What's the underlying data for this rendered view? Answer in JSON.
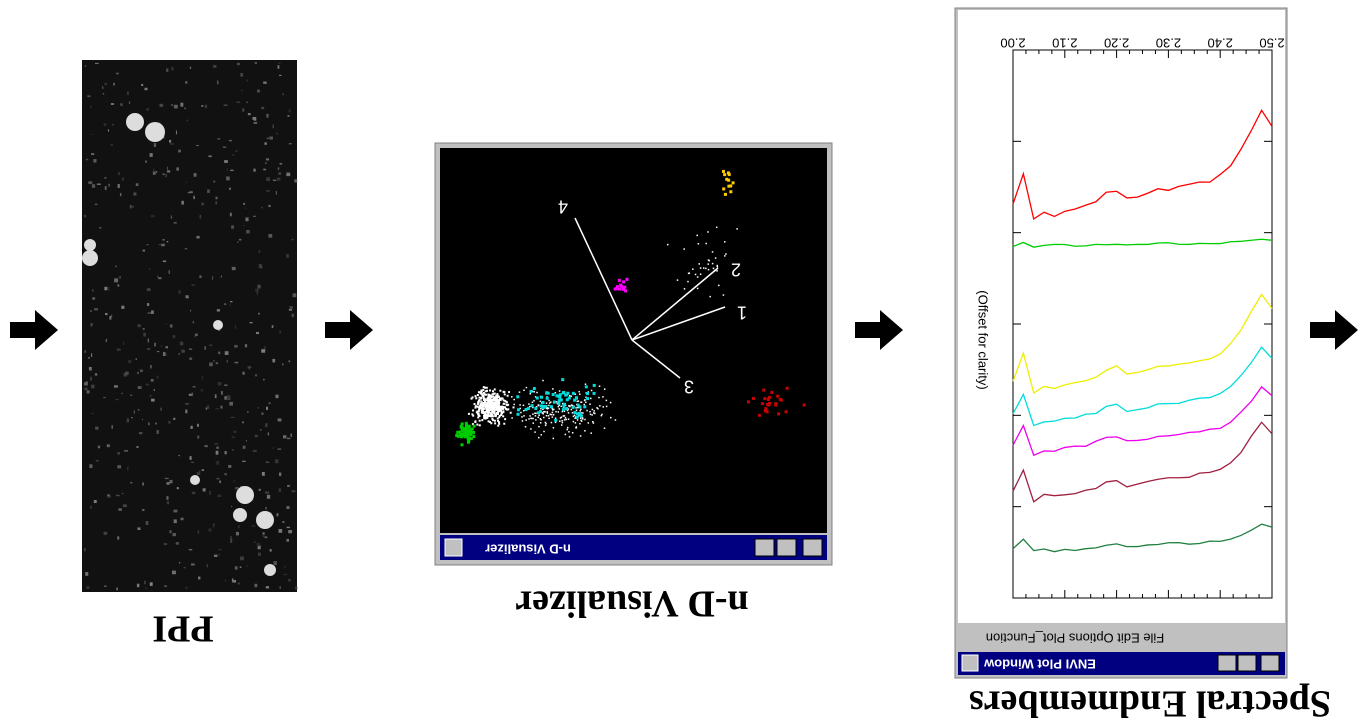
{
  "captions": {
    "ppi": "PPI",
    "nd_visualizer": "n-D Visualizer",
    "spectral_endmembers": "Spectral Endmembers"
  },
  "nd_visualizer": {
    "window_title": "n-D Visualizer",
    "axes": [
      "1",
      "2",
      "3",
      "4"
    ]
  },
  "plot_window": {
    "window_title": "ENVI Plot Window",
    "menu": "File  Edit  Options  Plot_Function",
    "y_label": "(Offset for clarity)",
    "x_ticks": [
      "2.00",
      "2.10",
      "2.20",
      "2.30",
      "2.40",
      "2.50"
    ]
  }
}
